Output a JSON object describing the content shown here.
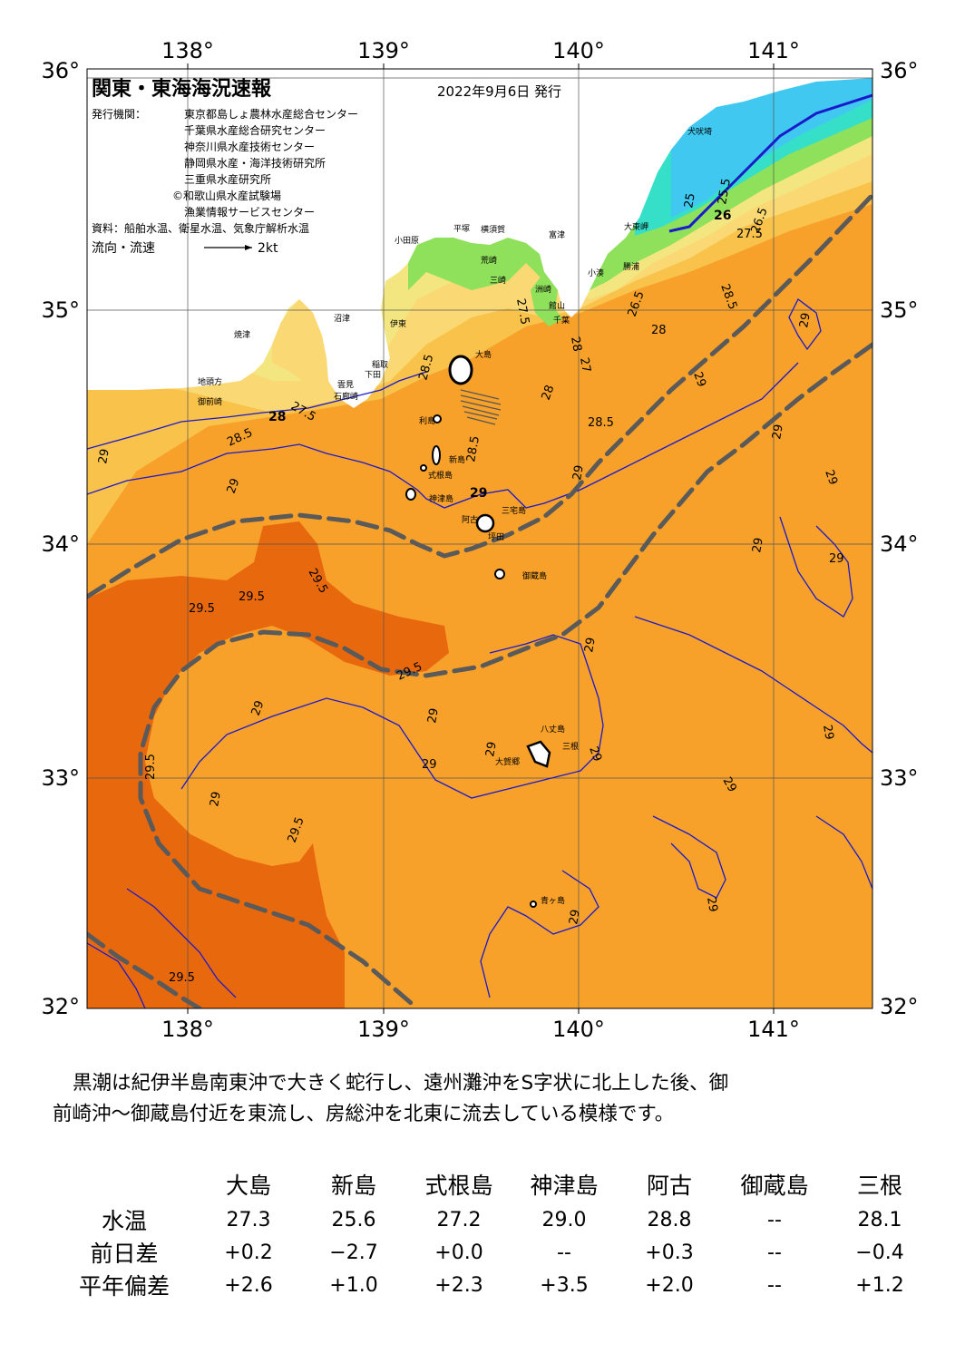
{
  "header": {
    "title": "関東・東海海況速報",
    "issued": "2022年9月6日 発行",
    "institutions_label": "発行機関：",
    "institutions": [
      "東京都島しょ農林水産総合センター",
      "千葉県水産総合研究センター",
      "神奈川県水産技術センター",
      "静岡県水産・海洋技術研究所",
      "三重県水産研究所",
      "©和歌山県水産試験場",
      "漁業情報サービスセンター"
    ],
    "source": "資料：船舶水温、衛星水温、気象庁解析水温",
    "flow_label": "流向・流速",
    "flow_scale": "2kt"
  },
  "axes": {
    "lon_labels": [
      "138°",
      "139°",
      "140°",
      "141°"
    ],
    "lat_labels": [
      "36°",
      "35°",
      "34°",
      "33°",
      "32°"
    ]
  },
  "colors": {
    "sea_29": "#f7a12a",
    "sea_295": "#e8680e",
    "sea_285": "#f9c24a",
    "sea_28": "#fad873",
    "sea_275": "#f3e680",
    "sea_27": "#d7ec6c",
    "sea_265": "#8fe05a",
    "sea_26": "#4fd88a",
    "sea_255": "#36e0c8",
    "sea_25": "#40c8f0",
    "land": "#ffffff",
    "isotherm": "#1a1acc",
    "kuroshio": "#5a5a5a"
  },
  "isotherm_labels": [
    "29",
    "29.5",
    "28.5",
    "28",
    "27.5",
    "27",
    "26.5",
    "26",
    "25.5",
    "25"
  ],
  "place_names": [
    "小田原",
    "平塚",
    "横須賀",
    "館山",
    "富津",
    "千葉",
    "大島",
    "利島",
    "新島",
    "式根島",
    "神津島",
    "三宅島",
    "阿古",
    "坪田",
    "御蔵島",
    "八丈島",
    "三根",
    "大賀郷",
    "青ヶ島",
    "伊東",
    "沼津",
    "焼津",
    "御前崎",
    "地頭方",
    "下田",
    "石廊崎",
    "雲見",
    "稲取",
    "大東岬",
    "犬吠埼",
    "勝浦",
    "小湊",
    "荒崎",
    "三崎",
    "洲崎"
  ],
  "summary": {
    "line1": "黒潮は紀伊半島南東沖で大きく蛇行し、遠州灘沖をS字状に北上した後、御",
    "line2": "前崎沖～御蔵島付近を東流し、房総沖を北東に流去している模様です。"
  },
  "table": {
    "columns": [
      "大島",
      "新島",
      "式根島",
      "神津島",
      "阿古",
      "御蔵島",
      "三根"
    ],
    "rows": [
      {
        "label": "水温",
        "values": [
          "27.3",
          "25.6",
          "27.2",
          "29.0",
          "28.8",
          "--",
          "28.1"
        ]
      },
      {
        "label": "前日差",
        "values": [
          "+0.2",
          "−2.7",
          "+0.0",
          "--",
          "+0.3",
          "--",
          "−0.4"
        ]
      },
      {
        "label": "平年偏差",
        "values": [
          "+2.6",
          "+1.0",
          "+2.3",
          "+3.5",
          "+2.0",
          "--",
          "+1.2"
        ]
      }
    ]
  }
}
